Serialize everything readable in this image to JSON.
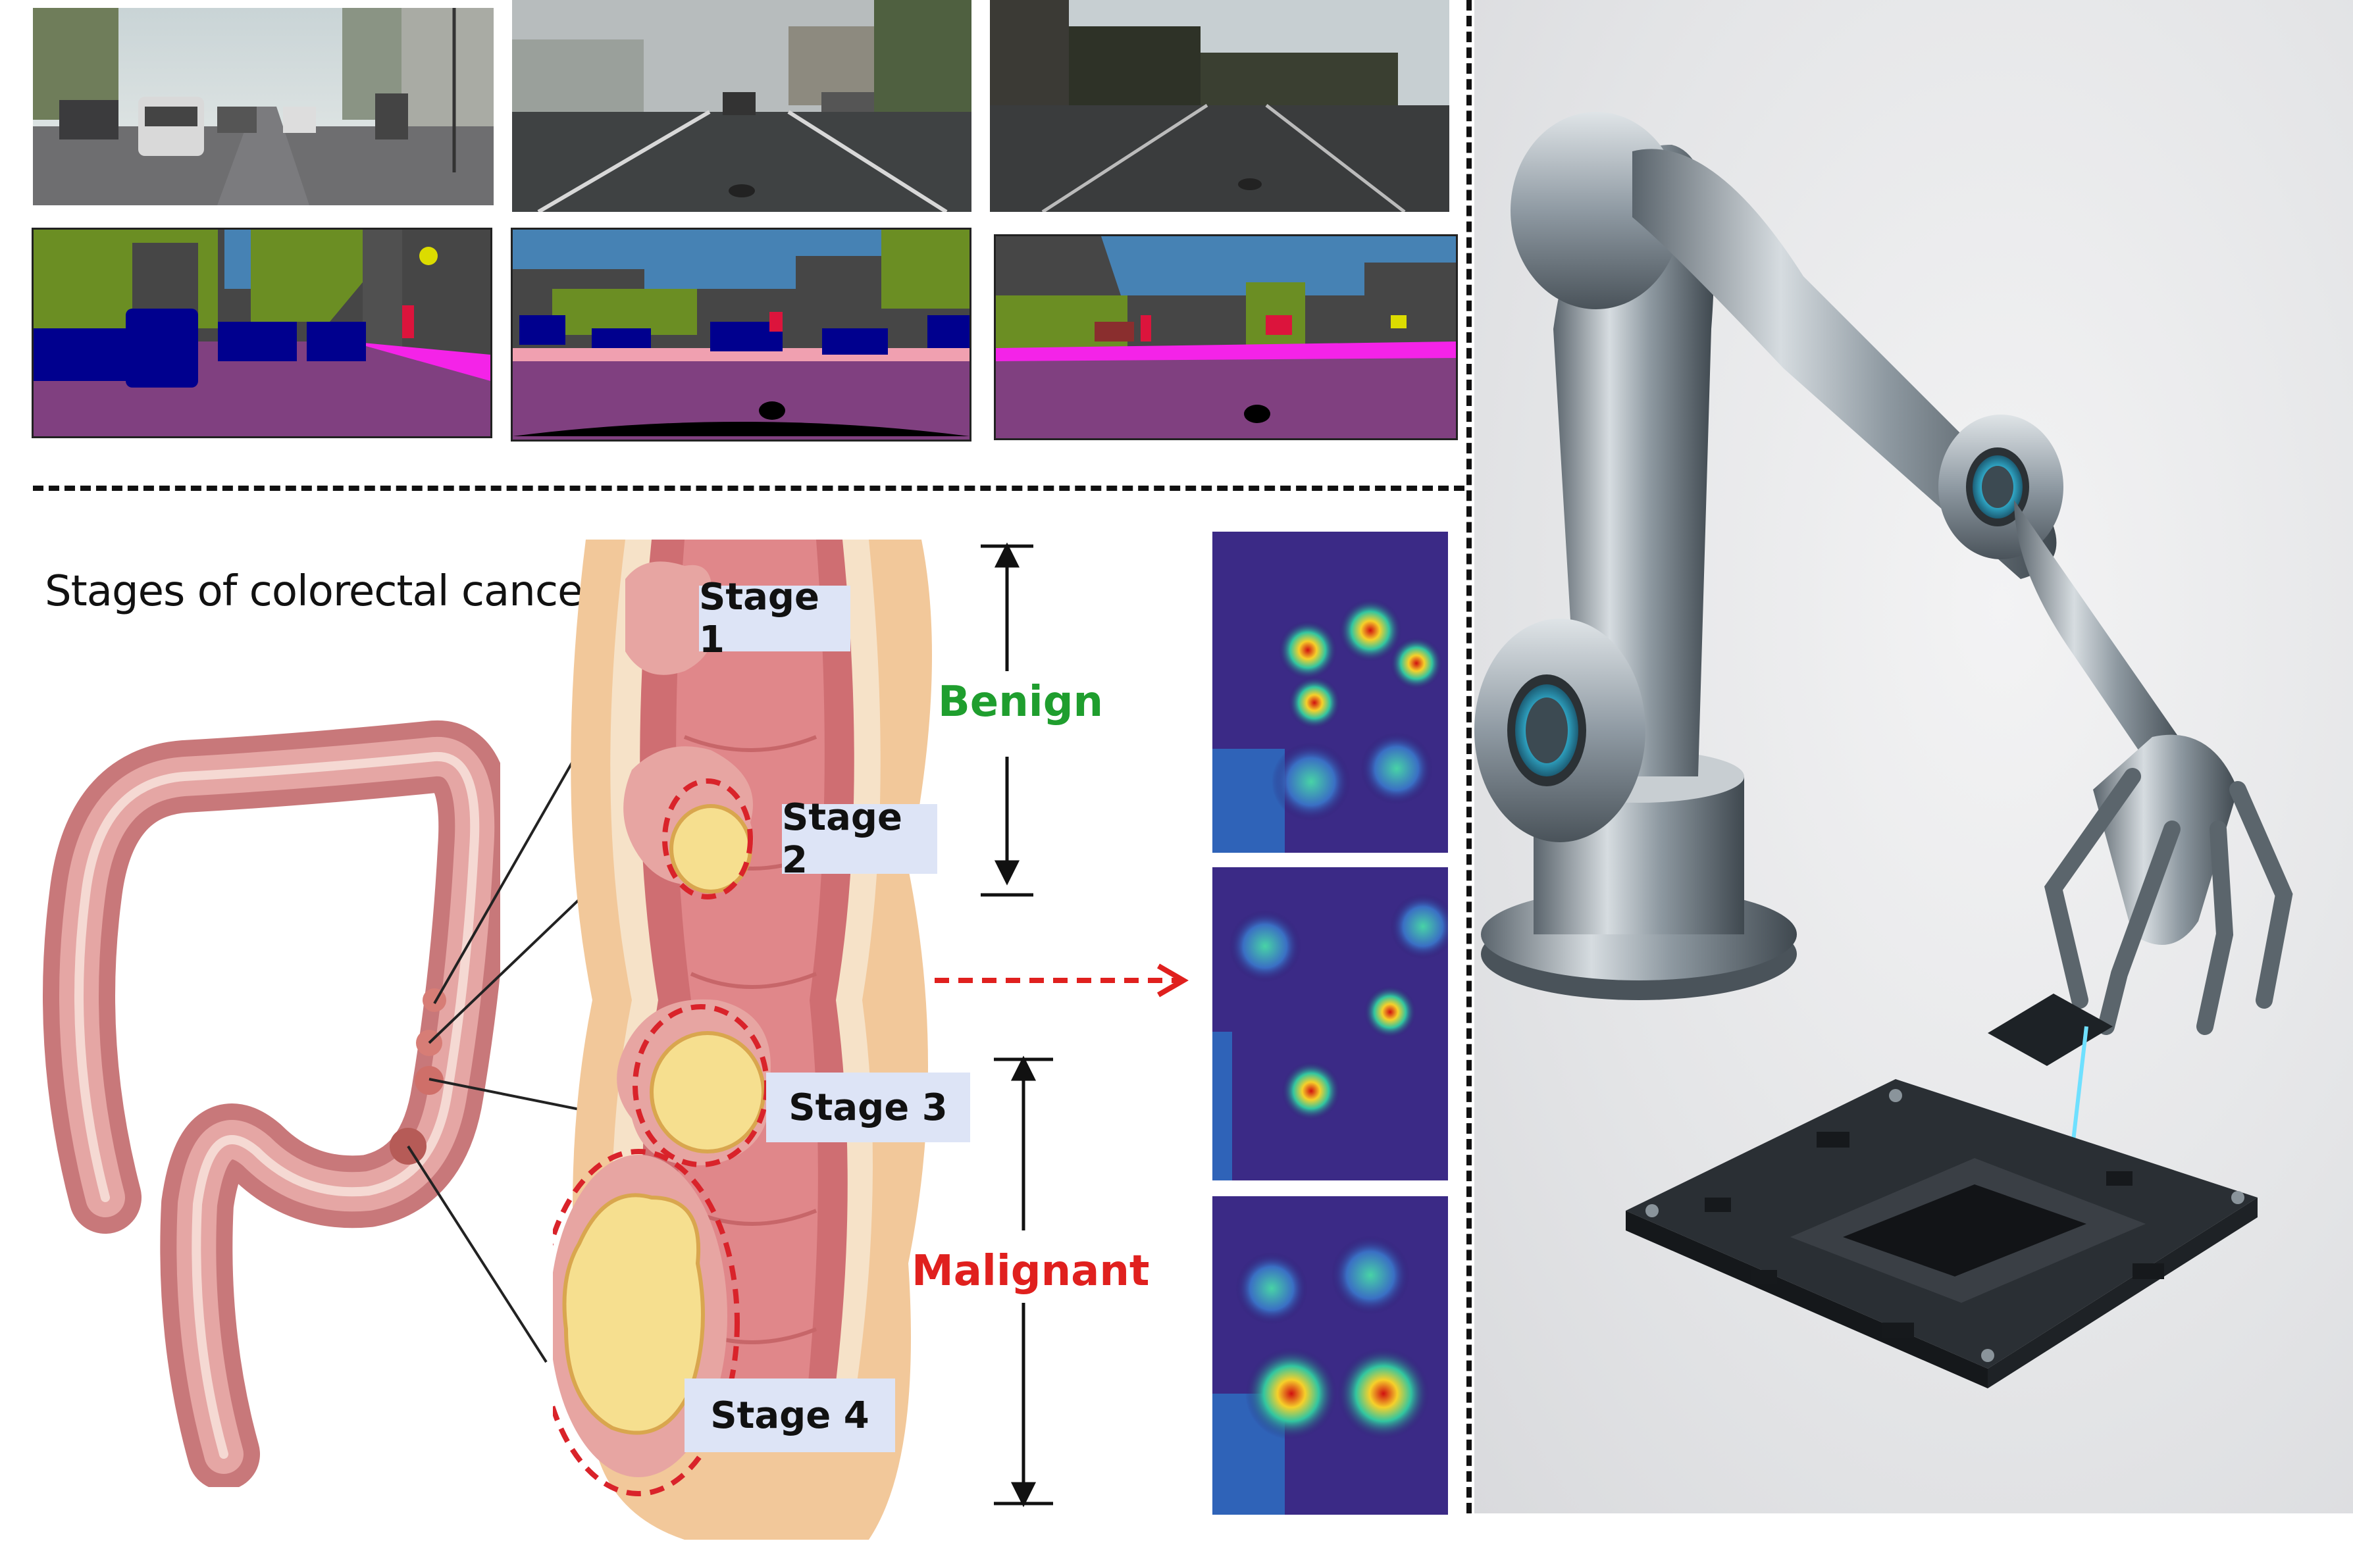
{
  "colorectal": {
    "title": "Stages of colorectal cancer",
    "stages": [
      {
        "label": "Stage 1"
      },
      {
        "label": "Stage 2"
      },
      {
        "label": "Stage 3"
      },
      {
        "label": "Stage 4"
      }
    ],
    "benign_label": "Benign",
    "malignant_label": "Malignant",
    "colors": {
      "benign": "#1f9e2e",
      "malignant": "#e0201e",
      "stage_box": "#dde4f6"
    }
  },
  "segmentation_colors": {
    "road": "#804080",
    "sidewalk": "#f423e8",
    "vegetation": "#6b8e23",
    "sky": "#4682b4",
    "car": "#00008e",
    "building": "#464646",
    "person": "#dc143c",
    "sign": "#dcdc00"
  }
}
